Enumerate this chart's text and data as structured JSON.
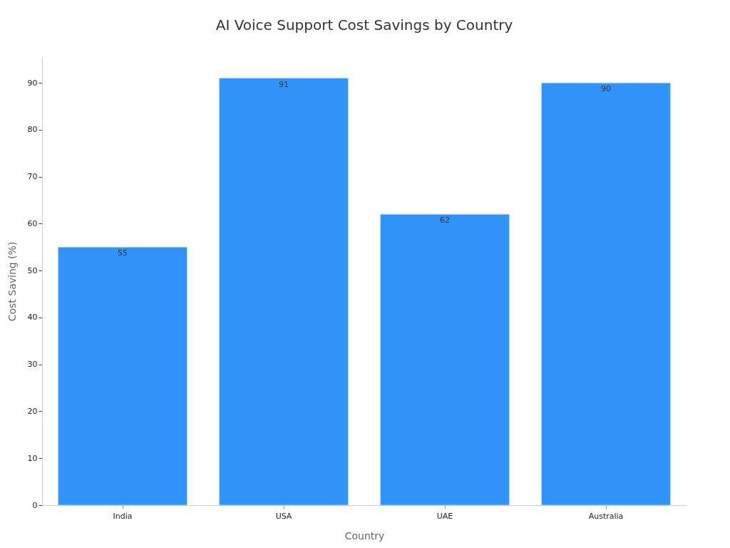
{
  "chart_data": {
    "type": "bar",
    "title": "AI Voice Support Cost Savings by Country",
    "xlabel": "Country",
    "ylabel": "Cost Saving (%)",
    "categories": [
      "India",
      "USA",
      "UAE",
      "Australia"
    ],
    "values": [
      55,
      91,
      62,
      90
    ],
    "color": "#2f93f7",
    "ylim": [
      0,
      95.5
    ],
    "yticks": [
      0,
      10,
      20,
      30,
      40,
      50,
      60,
      70,
      80,
      90
    ],
    "data_labels": true
  }
}
